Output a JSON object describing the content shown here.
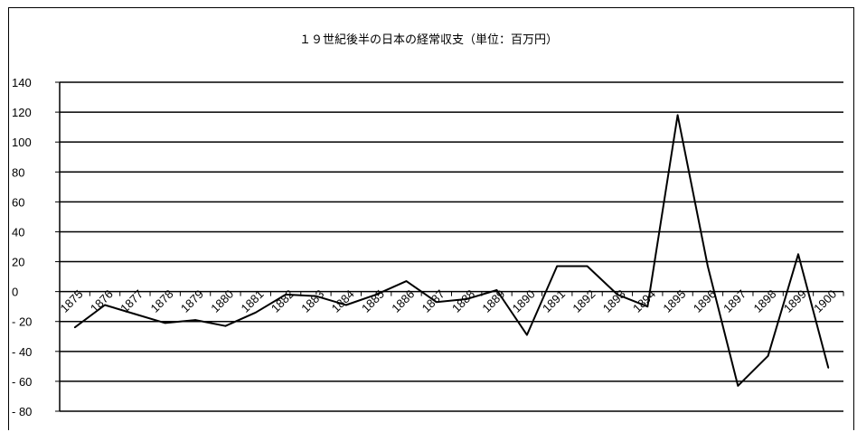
{
  "chart_data": {
    "type": "line",
    "title": "１９世紀後半の日本の経常収支（単位：百万円）",
    "xlabel": "",
    "ylabel": "",
    "ylim": [
      -80,
      140
    ],
    "ytick_step": 20,
    "grid": true,
    "legend": "none",
    "line_color": "#000000",
    "categories": [
      "1875",
      "1876",
      "1877",
      "1878",
      "1879",
      "1880",
      "1881",
      "1882",
      "1883",
      "1884",
      "1885",
      "1886",
      "1887",
      "1888",
      "1889",
      "1890",
      "1891",
      "1892",
      "1893",
      "1894",
      "1895",
      "1896",
      "1897",
      "1898",
      "1899",
      "1900"
    ],
    "series": [
      {
        "values": [
          -24,
          -9,
          -15,
          -21,
          -19,
          -23,
          -14,
          -2,
          -3,
          -9,
          -2,
          7,
          -7,
          -5,
          1,
          -29,
          17,
          17,
          -2,
          -10,
          118,
          17,
          -63,
          -43,
          25,
          -51
        ]
      }
    ]
  }
}
